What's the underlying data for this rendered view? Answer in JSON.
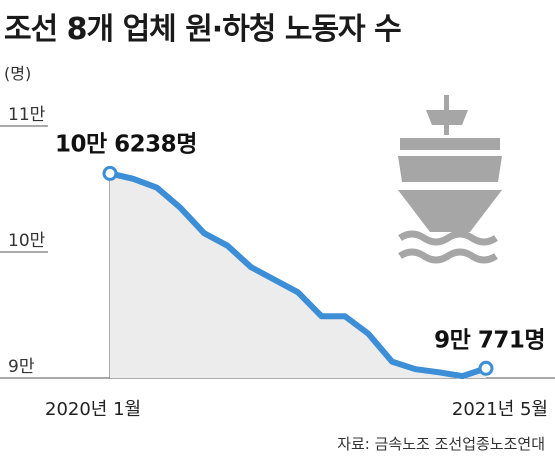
{
  "title": "조선 8개 업체 원·하청 노동자 수",
  "unit": "(명)",
  "source": "자료: 금속노조 조선업종노조연대",
  "colors": {
    "line": "#3c8ed6",
    "area": "#ececec",
    "axis": "#555555",
    "icon": "#a6a6a6",
    "marker_fill": "#ffffff"
  },
  "icon": "ship-icon",
  "chart_data": {
    "type": "area",
    "x_start_label": "2020년 1월",
    "x_end_label": "2021년 5월",
    "y_ticks": [
      {
        "label": "11만",
        "value": 110000
      },
      {
        "label": "10만",
        "value": 100000
      },
      {
        "label": "9만",
        "value": 90000
      }
    ],
    "ylim": [
      90000,
      110000
    ],
    "x": [
      "2020-01",
      "2020-02",
      "2020-03",
      "2020-04",
      "2020-05",
      "2020-06",
      "2020-07",
      "2020-08",
      "2020-09",
      "2020-10",
      "2020-11",
      "2020-12",
      "2021-01",
      "2021-02",
      "2021-03",
      "2021-04",
      "2021-05"
    ],
    "values": [
      106238,
      105800,
      105100,
      103500,
      101500,
      100500,
      98800,
      97800,
      96800,
      94900,
      94900,
      93500,
      91300,
      90700,
      90450,
      90150,
      90771
    ],
    "annotations": [
      {
        "index": 0,
        "label": "10만 6238명"
      },
      {
        "index": 16,
        "label": "9만 771명"
      }
    ]
  }
}
